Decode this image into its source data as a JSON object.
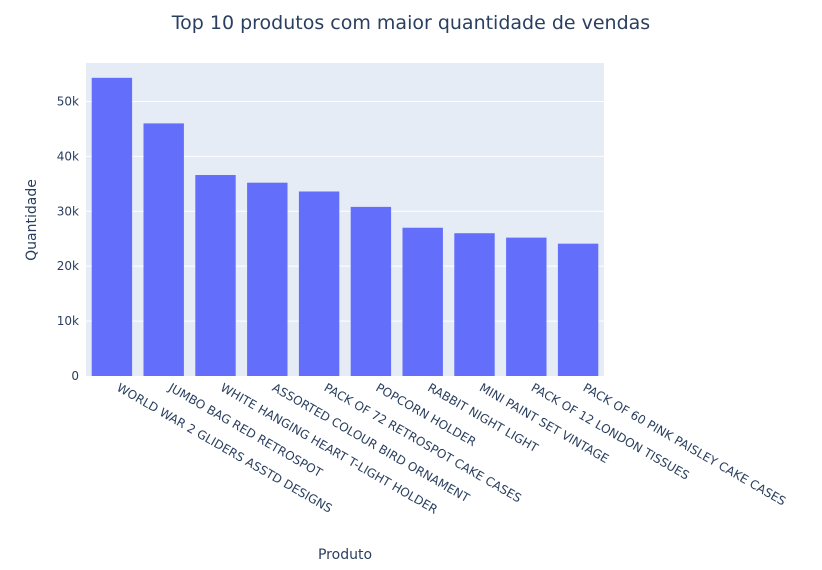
{
  "chart_data": {
    "type": "bar",
    "title": "Top 10 produtos com maior quantidade de vendas",
    "xlabel": "Produto",
    "ylabel": "Quantidade",
    "categories": [
      "WORLD WAR 2 GLIDERS ASSTD DESIGNS",
      "JUMBO BAG RED RETROSPOT",
      "WHITE HANGING HEART T-LIGHT HOLDER",
      "ASSORTED COLOUR BIRD ORNAMENT",
      "PACK OF 72 RETROSPOT CAKE CASES",
      "POPCORN HOLDER",
      "RABBIT NIGHT LIGHT",
      "MINI PAINT SET VINTAGE",
      "PACK OF 12 LONDON TISSUES",
      "PACK OF 60 PINK PAISLEY CAKE CASES"
    ],
    "values": [
      54300,
      46000,
      36600,
      35200,
      33600,
      30800,
      27000,
      26000,
      25200,
      24100
    ],
    "ylim": [
      0,
      57000
    ],
    "yticks": [
      0,
      10000,
      20000,
      30000,
      40000,
      50000
    ],
    "ytick_labels": [
      "0",
      "10k",
      "20k",
      "30k",
      "40k",
      "50k"
    ],
    "grid": true,
    "colors": {
      "bar": "#636efa",
      "plot_bg": "#e5ecf6",
      "grid": "#ffffff",
      "text": "#2a3f5f"
    }
  }
}
